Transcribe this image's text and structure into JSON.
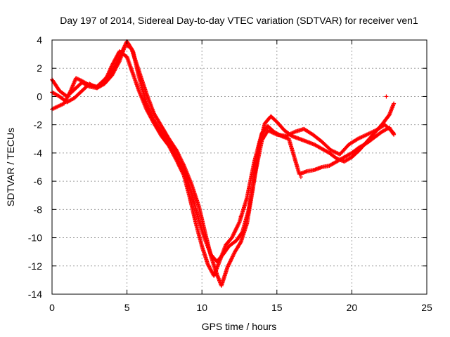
{
  "chart_data": {
    "type": "scatter",
    "title": "Day 197 of 2014, Sidereal Day-to-day VTEC variation (SDTVAR) for receiver ven1",
    "xlabel": "GPS time / hours",
    "ylabel": "SDTVAR / TECUs",
    "xlim": [
      0,
      25
    ],
    "ylim": [
      -14,
      4
    ],
    "xticks": [
      0,
      5,
      10,
      15,
      20,
      25
    ],
    "xtick_labels": [
      "0",
      "5",
      "10",
      "15",
      "20",
      "25"
    ],
    "yticks": [
      -14,
      -12,
      -10,
      -8,
      -6,
      -4,
      -2,
      0,
      2,
      4
    ],
    "ytick_labels": [
      "-14",
      "-12",
      "-10",
      "-8",
      "-6",
      "-4",
      "-2",
      "0",
      "2",
      "4"
    ],
    "grid": true,
    "marker": "+",
    "colors": {
      "series": "#ff0000",
      "grid": "#a0a0a0",
      "axis": "#000000"
    },
    "series": [
      {
        "name": "track-a",
        "x": [
          0.0,
          0.5,
          1.0,
          1.5,
          2.0,
          2.5,
          3.0,
          3.5,
          4.0,
          4.5,
          4.9,
          5.3,
          5.8,
          6.3,
          6.8,
          7.3,
          7.8,
          8.3,
          8.8,
          9.3,
          9.8,
          10.2,
          10.6,
          11.0,
          11.3,
          11.7,
          12.2,
          12.6,
          13.0,
          13.4,
          13.8,
          14.2,
          14.6,
          15.0,
          15.5,
          16.0,
          16.5,
          17.0,
          17.5,
          18.0,
          18.5,
          19.0,
          19.5,
          20.0,
          20.5,
          21.0,
          21.5,
          22.0,
          22.5,
          22.8
        ],
        "y": [
          1.2,
          0.4,
          0.0,
          0.5,
          1.0,
          0.7,
          0.6,
          0.9,
          1.5,
          2.5,
          3.7,
          3.4,
          1.8,
          0.2,
          -1.2,
          -2.1,
          -3.0,
          -3.8,
          -4.9,
          -6.2,
          -7.8,
          -9.6,
          -11.3,
          -12.6,
          -13.4,
          -12.1,
          -11.0,
          -10.3,
          -9.0,
          -6.5,
          -3.6,
          -1.9,
          -1.4,
          -1.8,
          -2.4,
          -2.8,
          -3.0,
          -3.2,
          -3.4,
          -3.7,
          -4.0,
          -4.4,
          -4.6,
          -4.3,
          -3.8,
          -3.2,
          -2.6,
          -2.0,
          -1.3,
          -0.5
        ]
      },
      {
        "name": "track-b",
        "x": [
          0.0,
          0.5,
          1.0,
          1.5,
          2.0,
          2.5,
          3.0,
          3.5,
          4.0,
          4.5,
          5.0,
          5.4,
          5.8,
          6.3,
          6.8,
          7.3,
          7.8,
          8.3,
          8.8,
          9.2,
          9.6,
          10.0,
          10.4,
          10.8,
          11.2,
          11.6,
          12.0,
          12.5,
          13.0,
          13.5,
          14.0,
          14.4,
          14.8,
          15.3,
          15.8,
          16.5,
          17.0,
          17.5,
          18.0,
          18.5,
          19.0,
          19.5,
          20.0,
          20.5,
          21.0,
          21.5,
          22.0,
          22.5,
          22.8
        ],
        "y": [
          0.3,
          0.0,
          -0.4,
          -0.1,
          0.4,
          0.9,
          0.6,
          1.0,
          2.2,
          3.2,
          2.8,
          1.6,
          0.4,
          -0.9,
          -1.9,
          -2.8,
          -3.5,
          -4.5,
          -5.6,
          -7.2,
          -9.0,
          -10.6,
          -11.9,
          -12.7,
          -11.6,
          -10.5,
          -10.0,
          -8.9,
          -7.2,
          -4.6,
          -2.6,
          -2.1,
          -2.5,
          -2.8,
          -3.0,
          -5.5,
          -5.3,
          -5.2,
          -5.0,
          -4.9,
          -4.6,
          -4.3,
          -4.0,
          -3.6,
          -3.3,
          -2.9,
          -2.5,
          -2.2,
          -2.7
        ]
      },
      {
        "name": "track-c",
        "x": [
          0.0,
          0.4,
          0.8,
          1.2,
          1.6,
          2.0,
          2.5,
          3.0,
          3.5,
          4.0,
          4.5,
          5.0,
          5.4,
          5.8,
          6.3,
          6.8,
          7.3,
          7.8,
          8.3,
          8.8,
          9.3,
          9.8,
          10.2,
          10.6,
          11.0,
          11.4,
          11.8,
          12.3,
          12.7,
          13.1,
          13.6,
          14.0,
          14.4,
          15.0,
          15.6,
          16.2,
          16.8,
          17.4,
          18.0,
          18.6,
          19.2,
          19.8,
          20.4,
          21.0,
          21.6,
          22.2,
          22.8
        ],
        "y": [
          -0.9,
          -0.7,
          -0.5,
          0.3,
          1.3,
          1.1,
          0.8,
          0.7,
          1.2,
          1.8,
          2.8,
          3.9,
          3.2,
          1.4,
          -0.5,
          -1.7,
          -2.5,
          -3.2,
          -4.2,
          -5.3,
          -6.8,
          -8.8,
          -10.1,
          -11.2,
          -11.7,
          -11.2,
          -10.6,
          -10.2,
          -9.6,
          -8.1,
          -5.2,
          -3.1,
          -2.4,
          -2.7,
          -2.8,
          -2.5,
          -2.3,
          -2.7,
          -3.2,
          -3.8,
          -4.1,
          -3.4,
          -3.0,
          -2.7,
          -2.4,
          -2.0,
          -2.6
        ]
      }
    ],
    "outliers": [
      [
        22.3,
        0.0
      ],
      [
        16.6,
        -5.7
      ],
      [
        12.6,
        -8.5
      ]
    ]
  }
}
